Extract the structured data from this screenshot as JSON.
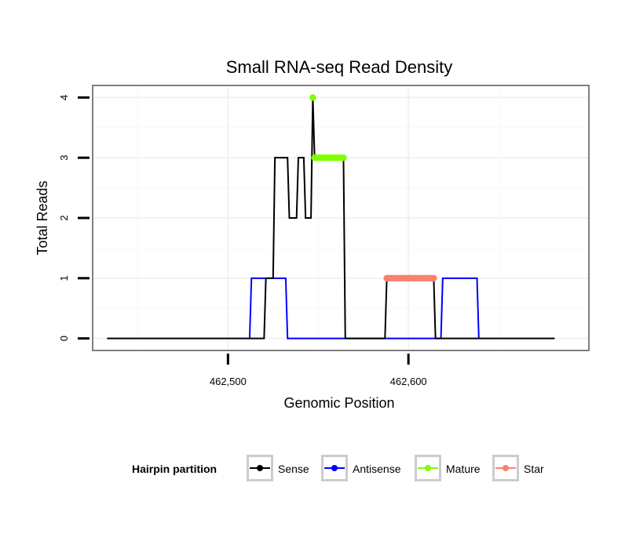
{
  "chart_data": {
    "type": "line",
    "title": "Small RNA-seq Read Density",
    "xlabel": "Genomic Position",
    "ylabel": "Total Reads",
    "xlim": [
      462425,
      462700
    ],
    "ylim": [
      -0.2,
      4.2
    ],
    "x_ticks": [
      462500,
      462600
    ],
    "x_tick_labels": [
      "462,500",
      "462,600"
    ],
    "y_ticks": [
      0,
      1,
      2,
      3,
      4
    ],
    "y_tick_labels": [
      "0",
      "1",
      "2",
      "3",
      "4"
    ],
    "grid": true,
    "legend": {
      "title": "Hairpin partition",
      "position": "bottom"
    },
    "series": [
      {
        "name": "Sense",
        "color": "#000000",
        "style": "line",
        "points": [
          [
            462433,
            0
          ],
          [
            462520,
            0
          ],
          [
            462521,
            1
          ],
          [
            462525,
            1
          ],
          [
            462526,
            3
          ],
          [
            462533,
            3
          ],
          [
            462534,
            2
          ],
          [
            462538,
            2
          ],
          [
            462539,
            3
          ],
          [
            462542,
            3
          ],
          [
            462543,
            2
          ],
          [
            462546,
            2
          ],
          [
            462547,
            4
          ],
          [
            462548,
            3
          ],
          [
            462564,
            3
          ],
          [
            462565,
            0
          ],
          [
            462587,
            0
          ],
          [
            462588,
            1
          ],
          [
            462614,
            1
          ],
          [
            462615,
            0
          ],
          [
            462681,
            0
          ]
        ]
      },
      {
        "name": "Antisense",
        "color": "#0000ff",
        "style": "line",
        "points": [
          [
            462512,
            0
          ],
          [
            462513,
            1
          ],
          [
            462532,
            1
          ],
          [
            462533,
            0
          ],
          [
            462618,
            0
          ],
          [
            462619,
            1
          ],
          [
            462638,
            1
          ],
          [
            462639,
            0
          ]
        ]
      },
      {
        "name": "Mature",
        "color": "#7fff00",
        "style": "points",
        "points": [
          [
            462547,
            4
          ],
          [
            462548,
            3
          ],
          [
            462549,
            3
          ],
          [
            462550,
            3
          ],
          [
            462551,
            3
          ],
          [
            462552,
            3
          ],
          [
            462553,
            3
          ],
          [
            462554,
            3
          ],
          [
            462555,
            3
          ],
          [
            462556,
            3
          ],
          [
            462557,
            3
          ],
          [
            462558,
            3
          ],
          [
            462559,
            3
          ],
          [
            462560,
            3
          ],
          [
            462561,
            3
          ],
          [
            462562,
            3
          ],
          [
            462563,
            3
          ],
          [
            462564,
            3
          ]
        ]
      },
      {
        "name": "Star",
        "color": "#fa8072",
        "style": "points",
        "points": [
          [
            462588,
            1
          ],
          [
            462589,
            1
          ],
          [
            462590,
            1
          ],
          [
            462591,
            1
          ],
          [
            462592,
            1
          ],
          [
            462593,
            1
          ],
          [
            462594,
            1
          ],
          [
            462595,
            1
          ],
          [
            462596,
            1
          ],
          [
            462597,
            1
          ],
          [
            462598,
            1
          ],
          [
            462599,
            1
          ],
          [
            462600,
            1
          ],
          [
            462601,
            1
          ],
          [
            462602,
            1
          ],
          [
            462603,
            1
          ],
          [
            462604,
            1
          ],
          [
            462605,
            1
          ],
          [
            462606,
            1
          ],
          [
            462607,
            1
          ],
          [
            462608,
            1
          ],
          [
            462609,
            1
          ],
          [
            462610,
            1
          ],
          [
            462611,
            1
          ],
          [
            462612,
            1
          ],
          [
            462613,
            1
          ],
          [
            462614,
            1
          ]
        ]
      }
    ]
  }
}
